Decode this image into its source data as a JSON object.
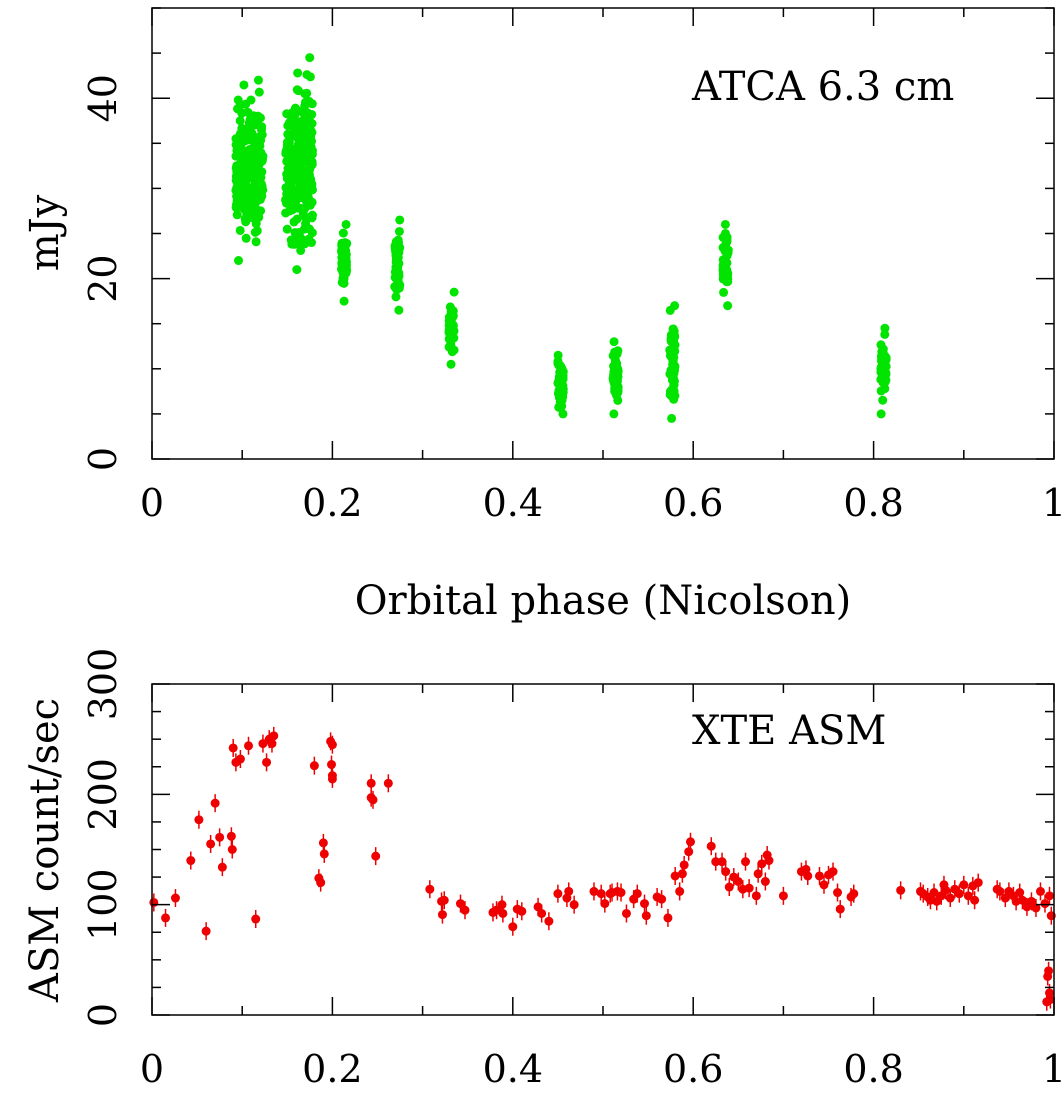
{
  "chart_data": [
    {
      "type": "scatter",
      "annotation": "ATCA 6.3 cm",
      "xlabel": "Orbital phase (Nicolson)",
      "ylabel": "mJy",
      "xlim": [
        0,
        1
      ],
      "ylim": [
        0,
        50
      ],
      "xticks": [
        "0",
        "0.2",
        "0.4",
        "0.6",
        "0.8",
        "1"
      ],
      "yticks": [
        "0",
        "20",
        "40"
      ],
      "color": "#00e400",
      "clusters": [
        {
          "x": 0.108,
          "y_min": 22,
          "y_max": 42
        },
        {
          "x": 0.163,
          "y_min": 21,
          "y_max": 44.5
        },
        {
          "x": 0.213,
          "y_min": 17.5,
          "y_max": 26
        },
        {
          "x": 0.272,
          "y_min": 16.5,
          "y_max": 26.5
        },
        {
          "x": 0.332,
          "y_min": 10.5,
          "y_max": 18.5
        },
        {
          "x": 0.453,
          "y_min": 5,
          "y_max": 11.5
        },
        {
          "x": 0.514,
          "y_min": 5,
          "y_max": 13
        },
        {
          "x": 0.577,
          "y_min": 4.5,
          "y_max": 17
        },
        {
          "x": 0.636,
          "y_min": 17,
          "y_max": 26
        },
        {
          "x": 0.811,
          "y_min": 5,
          "y_max": 14.5
        }
      ]
    },
    {
      "type": "scatter",
      "annotation": "XTE ASM",
      "xlabel": "",
      "ylabel": "ASM count/sec",
      "xlim": [
        0,
        1
      ],
      "ylim": [
        0,
        300
      ],
      "xticks": [
        "0",
        "0.2",
        "0.4",
        "0.6",
        "0.8",
        "1"
      ],
      "yticks": [
        "0",
        "100",
        "200",
        "300"
      ],
      "color": "#ee0000",
      "points": [
        [
          0.002,
          102
        ],
        [
          0.015,
          88
        ],
        [
          0.026,
          106
        ],
        [
          0.043,
          140
        ],
        [
          0.052,
          177
        ],
        [
          0.06,
          76
        ],
        [
          0.065,
          155
        ],
        [
          0.07,
          192
        ],
        [
          0.075,
          161
        ],
        [
          0.078,
          134
        ],
        [
          0.088,
          162
        ],
        [
          0.089,
          150
        ],
        [
          0.09,
          242
        ],
        [
          0.093,
          229
        ],
        [
          0.098,
          232
        ],
        [
          0.107,
          244
        ],
        [
          0.115,
          87
        ],
        [
          0.123,
          246
        ],
        [
          0.127,
          229
        ],
        [
          0.13,
          250
        ],
        [
          0.133,
          246
        ],
        [
          0.135,
          253
        ],
        [
          0.18,
          226
        ],
        [
          0.185,
          124
        ],
        [
          0.187,
          120
        ],
        [
          0.19,
          156
        ],
        [
          0.191,
          146
        ],
        [
          0.198,
          248
        ],
        [
          0.199,
          227
        ],
        [
          0.2,
          245
        ],
        [
          0.2,
          217
        ],
        [
          0.2,
          214
        ],
        [
          0.243,
          210
        ],
        [
          0.243,
          197
        ],
        [
          0.245,
          195
        ],
        [
          0.248,
          144
        ],
        [
          0.262,
          210
        ],
        [
          0.308,
          114
        ],
        [
          0.321,
          103
        ],
        [
          0.322,
          91
        ],
        [
          0.324,
          104
        ],
        [
          0.342,
          101
        ],
        [
          0.347,
          95
        ],
        [
          0.378,
          93
        ],
        [
          0.382,
          95
        ],
        [
          0.388,
          100
        ],
        [
          0.389,
          92
        ],
        [
          0.4,
          80
        ],
        [
          0.405,
          96
        ],
        [
          0.41,
          94
        ],
        [
          0.428,
          98
        ],
        [
          0.432,
          92
        ],
        [
          0.44,
          85
        ],
        [
          0.45,
          110
        ],
        [
          0.46,
          106
        ],
        [
          0.462,
          112
        ],
        [
          0.468,
          100
        ],
        [
          0.49,
          112
        ],
        [
          0.498,
          110
        ],
        [
          0.502,
          101
        ],
        [
          0.508,
          110
        ],
        [
          0.51,
          111
        ],
        [
          0.516,
          112
        ],
        [
          0.52,
          111
        ],
        [
          0.526,
          92
        ],
        [
          0.534,
          105
        ],
        [
          0.538,
          110
        ],
        [
          0.546,
          101
        ],
        [
          0.548,
          90
        ],
        [
          0.56,
          107
        ],
        [
          0.565,
          105
        ],
        [
          0.572,
          88
        ],
        [
          0.58,
          126
        ],
        [
          0.585,
          112
        ],
        [
          0.588,
          128
        ],
        [
          0.59,
          136
        ],
        [
          0.595,
          148
        ],
        [
          0.597,
          157
        ],
        [
          0.62,
          153
        ],
        [
          0.625,
          139
        ],
        [
          0.632,
          139
        ],
        [
          0.636,
          130
        ],
        [
          0.64,
          116
        ],
        [
          0.645,
          125
        ],
        [
          0.65,
          121
        ],
        [
          0.655,
          114
        ],
        [
          0.658,
          139
        ],
        [
          0.662,
          115
        ],
        [
          0.67,
          108
        ],
        [
          0.672,
          128
        ],
        [
          0.676,
          137
        ],
        [
          0.68,
          121
        ],
        [
          0.682,
          145
        ],
        [
          0.684,
          140
        ],
        [
          0.7,
          108
        ],
        [
          0.72,
          130
        ],
        [
          0.725,
          132
        ],
        [
          0.727,
          126
        ],
        [
          0.74,
          126
        ],
        [
          0.745,
          118
        ],
        [
          0.75,
          127
        ],
        [
          0.755,
          130
        ],
        [
          0.76,
          111
        ],
        [
          0.763,
          96
        ],
        [
          0.775,
          107
        ],
        [
          0.778,
          110
        ],
        [
          0.83,
          113
        ],
        [
          0.852,
          112
        ],
        [
          0.855,
          110
        ],
        [
          0.86,
          107
        ],
        [
          0.863,
          104
        ],
        [
          0.867,
          111
        ],
        [
          0.87,
          103
        ],
        [
          0.875,
          108
        ],
        [
          0.878,
          118
        ],
        [
          0.88,
          113
        ],
        [
          0.885,
          106
        ],
        [
          0.89,
          114
        ],
        [
          0.895,
          110
        ],
        [
          0.9,
          118
        ],
        [
          0.905,
          108
        ],
        [
          0.91,
          117
        ],
        [
          0.912,
          104
        ],
        [
          0.916,
          120
        ],
        [
          0.937,
          114
        ],
        [
          0.94,
          112
        ],
        [
          0.946,
          106
        ],
        [
          0.95,
          112
        ],
        [
          0.955,
          108
        ],
        [
          0.958,
          103
        ],
        [
          0.962,
          111
        ],
        [
          0.965,
          104
        ],
        [
          0.97,
          98
        ],
        [
          0.975,
          103
        ],
        [
          0.98,
          97
        ],
        [
          0.985,
          112
        ],
        [
          0.99,
          101
        ],
        [
          0.995,
          108
        ],
        [
          0.997,
          90
        ],
        [
          0.993,
          35
        ],
        [
          0.995,
          20
        ],
        [
          0.992,
          12
        ],
        [
          0.994,
          40
        ],
        [
          0.996,
          14
        ]
      ]
    }
  ]
}
